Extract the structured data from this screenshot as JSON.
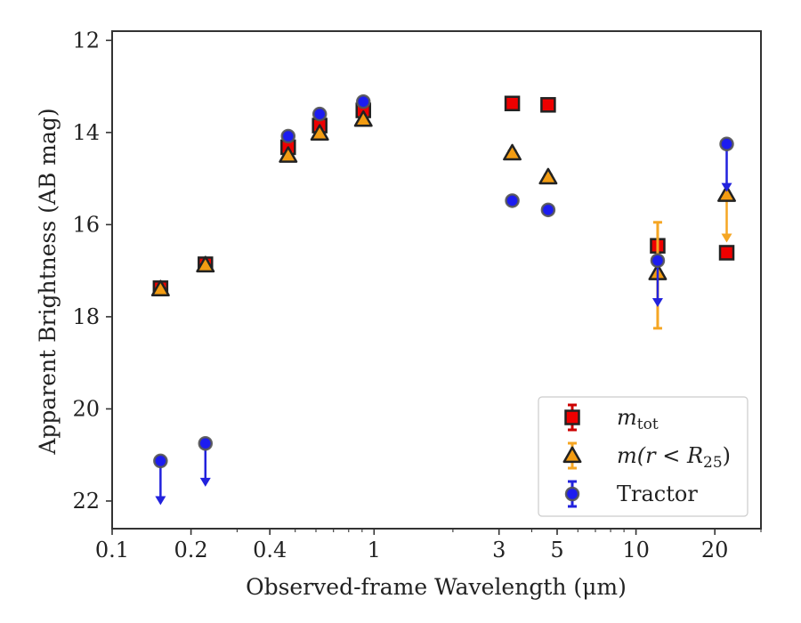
{
  "chart_data": {
    "type": "scatter",
    "title": "",
    "xlabel": "Observed-frame Wavelength (μm)",
    "ylabel": "Apparent Brightness (AB mag)",
    "xscale": "log",
    "xlim": [
      0.1,
      30
    ],
    "ylim": [
      22.6,
      11.8
    ],
    "y_inverted": true,
    "xticks": [
      {
        "value": 0.1,
        "label": "0.1"
      },
      {
        "value": 0.2,
        "label": "0.2"
      },
      {
        "value": 0.4,
        "label": "0.4"
      },
      {
        "value": 1,
        "label": "1"
      },
      {
        "value": 3,
        "label": "3"
      },
      {
        "value": 5,
        "label": "5"
      },
      {
        "value": 10,
        "label": "10"
      },
      {
        "value": 20,
        "label": "20"
      }
    ],
    "yticks": [
      {
        "value": 12,
        "label": "12"
      },
      {
        "value": 14,
        "label": "14"
      },
      {
        "value": 16,
        "label": "16"
      },
      {
        "value": 18,
        "label": "18"
      },
      {
        "value": 20,
        "label": "20"
      },
      {
        "value": 22,
        "label": "22"
      }
    ],
    "grid": false,
    "legend_position": "lower-right",
    "series": [
      {
        "name": "m_tot",
        "legend_main": "m",
        "legend_sub": "tot",
        "marker": "square",
        "color": "#ee0000",
        "errcolor": "#cc0000",
        "points": [
          {
            "x": 0.153,
            "y": 17.38,
            "err": 0.12
          },
          {
            "x": 0.227,
            "y": 16.86,
            "err": 0.1
          },
          {
            "x": 0.47,
            "y": 14.32,
            "err": 0.1
          },
          {
            "x": 0.62,
            "y": 13.85,
            "err": 0.1
          },
          {
            "x": 0.91,
            "y": 13.52,
            "err": 0.1
          },
          {
            "x": 3.37,
            "y": 13.37,
            "err": 0.05
          },
          {
            "x": 4.62,
            "y": 13.4,
            "err": 0.05
          },
          {
            "x": 12.1,
            "y": 16.46,
            "err": 0.05
          },
          {
            "x": 22.2,
            "y": 16.61,
            "err": 0.05
          }
        ]
      },
      {
        "name": "m(r < R25)",
        "legend_main": "m(r < R",
        "legend_sub": "25",
        "legend_end": ")",
        "marker": "triangle",
        "color": "#f39c12",
        "errcolor": "#f5a623",
        "points": [
          {
            "x": 0.153,
            "y": 17.4,
            "err": 0.05
          },
          {
            "x": 0.227,
            "y": 16.88,
            "err": 0.05
          },
          {
            "x": 0.47,
            "y": 14.5,
            "err": 0.05
          },
          {
            "x": 0.62,
            "y": 14.02,
            "err": 0.05
          },
          {
            "x": 0.91,
            "y": 13.72,
            "err": 0.05
          },
          {
            "x": 3.37,
            "y": 14.45,
            "err": 0.05
          },
          {
            "x": 4.62,
            "y": 14.97,
            "err": 0.05
          },
          {
            "x": 12.1,
            "y": 17.05,
            "err": 1.2,
            "err_low": 1.2,
            "err_high": 1.1
          }
        ],
        "upper_limits": [
          {
            "x": 22.2,
            "y": 15.35,
            "to": 16.35
          }
        ]
      },
      {
        "name": "Tractor",
        "legend_main": "Tractor",
        "marker": "circle",
        "color": "#1c1cf0",
        "errcolor": "#2222dd",
        "points": [
          {
            "x": 0.47,
            "y": 14.08,
            "err": 0.05
          },
          {
            "x": 0.62,
            "y": 13.6,
            "err": 0.05
          },
          {
            "x": 0.91,
            "y": 13.33,
            "err": 0.05
          },
          {
            "x": 3.37,
            "y": 15.48,
            "err": 0.05
          },
          {
            "x": 4.62,
            "y": 15.68,
            "err": 0.05
          }
        ],
        "upper_limits": [
          {
            "x": 0.153,
            "y": 21.13,
            "to": 22.05
          },
          {
            "x": 0.227,
            "y": 20.75,
            "to": 21.65
          },
          {
            "x": 12.1,
            "y": 16.78,
            "to": 17.75
          },
          {
            "x": 22.2,
            "y": 14.25,
            "to": 15.25
          }
        ]
      }
    ]
  }
}
